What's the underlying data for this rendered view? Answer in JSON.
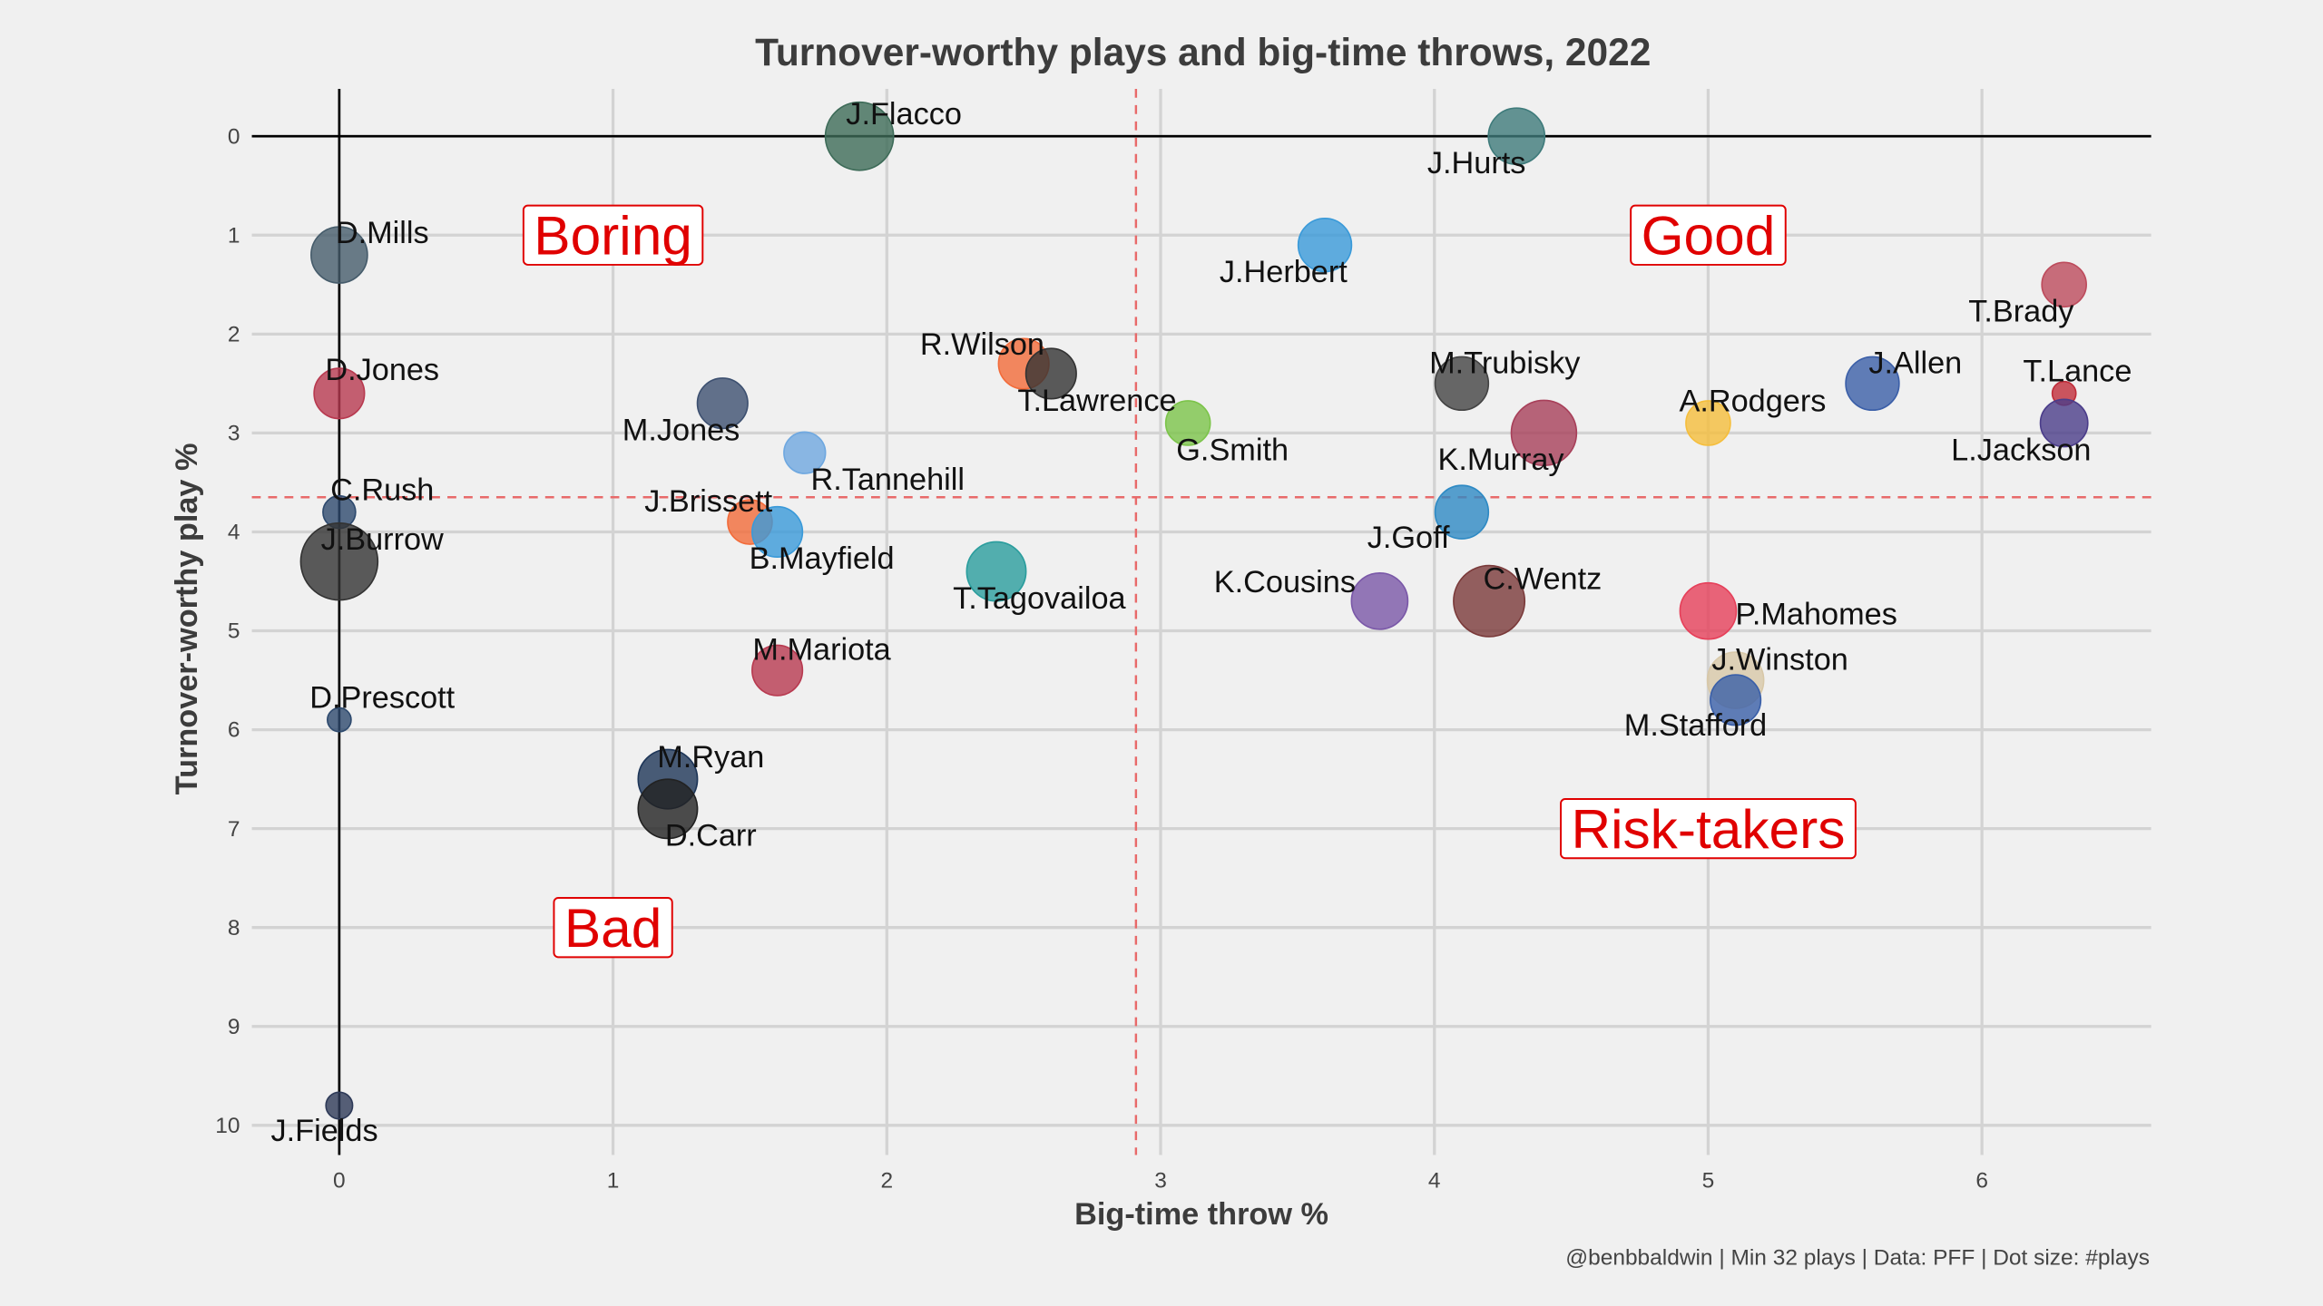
{
  "chart_data": {
    "type": "scatter",
    "title": "Turnover-worthy plays and big-time throws, 2022",
    "xlabel": "Big-time throw %",
    "ylabel": "Turnover-worthy play %",
    "caption": "@benbbaldwin | Min 32 plays | Data: PFF | Dot size: #plays",
    "xlim": [
      -0.3,
      6.6
    ],
    "ylim": [
      10.2,
      -0.5
    ],
    "y_reversed": true,
    "x_ticks": [
      0,
      1,
      2,
      3,
      4,
      5,
      6
    ],
    "y_ticks": [
      0,
      1,
      2,
      3,
      4,
      5,
      6,
      7,
      8,
      9,
      10
    ],
    "grid": true,
    "reference_lines": {
      "x_mean": 2.91,
      "y_mean": 3.65,
      "x_zero": 0,
      "y_zero": 0
    },
    "quadrant_labels": [
      {
        "text": "Boring",
        "x": 1,
        "y": 1
      },
      {
        "text": "Good",
        "x": 5,
        "y": 1
      },
      {
        "text": "Risk-takers",
        "x": 5,
        "y": 7
      },
      {
        "text": "Bad",
        "x": 1,
        "y": 8
      }
    ],
    "points": [
      {
        "name": "J.Flacco",
        "x": 1.9,
        "y": 0.0,
        "size": 23,
        "color": "#3d6b58"
      },
      {
        "name": "J.Hurts",
        "x": 4.3,
        "y": 0.0,
        "size": 19,
        "color": "#3f7b7b"
      },
      {
        "name": "D.Mills",
        "x": 0.0,
        "y": 1.2,
        "size": 19,
        "color": "#465c6b"
      },
      {
        "name": "J.Herbert",
        "x": 3.6,
        "y": 1.1,
        "size": 18,
        "color": "#3a9ad9"
      },
      {
        "name": "T.Brady",
        "x": 6.3,
        "y": 1.5,
        "size": 15,
        "color": "#bd4b5c"
      },
      {
        "name": "R.Wilson",
        "x": 2.5,
        "y": 2.3,
        "size": 17,
        "color": "#f26b3a"
      },
      {
        "name": "T.Lawrence",
        "x": 2.6,
        "y": 2.4,
        "size": 17,
        "color": "#333333"
      },
      {
        "name": "D.Jones",
        "x": 0.0,
        "y": 2.6,
        "size": 17,
        "color": "#b83a50"
      },
      {
        "name": "M.Jones",
        "x": 1.4,
        "y": 2.7,
        "size": 17,
        "color": "#3d5070"
      },
      {
        "name": "M.Trubisky",
        "x": 4.1,
        "y": 2.5,
        "size": 18,
        "color": "#444444"
      },
      {
        "name": "J.Allen",
        "x": 5.6,
        "y": 2.5,
        "size": 18,
        "color": "#3b5fa8"
      },
      {
        "name": "T.Lance",
        "x": 6.3,
        "y": 2.6,
        "size": 8,
        "color": "#c02d3a"
      },
      {
        "name": "L.Jackson",
        "x": 6.3,
        "y": 2.9,
        "size": 16,
        "color": "#4b3d8a"
      },
      {
        "name": "A.Rodgers",
        "x": 5.0,
        "y": 2.9,
        "size": 15,
        "color": "#f5be3c"
      },
      {
        "name": "G.Smith",
        "x": 3.1,
        "y": 2.9,
        "size": 15,
        "color": "#7cc44a"
      },
      {
        "name": "K.Murray",
        "x": 4.4,
        "y": 3.0,
        "size": 22,
        "color": "#a8405a"
      },
      {
        "name": "R.Tannehill",
        "x": 1.7,
        "y": 3.2,
        "size": 14,
        "color": "#6fa8e0"
      },
      {
        "name": "C.Rush",
        "x": 0.0,
        "y": 3.8,
        "size": 11,
        "color": "#2e4a6e"
      },
      {
        "name": "J.Brissett",
        "x": 1.5,
        "y": 3.9,
        "size": 15,
        "color": "#f26b3a"
      },
      {
        "name": "B.Mayfield",
        "x": 1.6,
        "y": 4.0,
        "size": 17,
        "color": "#3a9ad9"
      },
      {
        "name": "J.Goff",
        "x": 4.1,
        "y": 3.8,
        "size": 18,
        "color": "#2e8ac4"
      },
      {
        "name": "J.Burrow",
        "x": 0.0,
        "y": 4.3,
        "size": 26,
        "color": "#333333"
      },
      {
        "name": "T.Tagovailoa",
        "x": 2.4,
        "y": 4.4,
        "size": 20,
        "color": "#2a9d9d"
      },
      {
        "name": "K.Cousins",
        "x": 3.8,
        "y": 4.7,
        "size": 19,
        "color": "#7a58a8"
      },
      {
        "name": "C.Wentz",
        "x": 4.2,
        "y": 4.7,
        "size": 24,
        "color": "#7a3a3a"
      },
      {
        "name": "P.Mahomes",
        "x": 5.0,
        "y": 4.8,
        "size": 19,
        "color": "#e6405a"
      },
      {
        "name": "M.Mariota",
        "x": 1.6,
        "y": 5.4,
        "size": 17,
        "color": "#b83a50"
      },
      {
        "name": "J.Winston",
        "x": 5.1,
        "y": 5.5,
        "size": 19,
        "color": "#d8c8a8"
      },
      {
        "name": "M.Stafford",
        "x": 5.1,
        "y": 5.7,
        "size": 17,
        "color": "#3a5fa8"
      },
      {
        "name": "D.Prescott",
        "x": 0.0,
        "y": 5.9,
        "size": 8,
        "color": "#2e4a6e"
      },
      {
        "name": "M.Ryan",
        "x": 1.2,
        "y": 6.5,
        "size": 20,
        "color": "#1e3658"
      },
      {
        "name": "D.Carr",
        "x": 1.2,
        "y": 6.8,
        "size": 20,
        "color": "#222222"
      },
      {
        "name": "J.Fields",
        "x": 0.0,
        "y": 9.8,
        "size": 9,
        "color": "#2e3a58"
      }
    ]
  }
}
